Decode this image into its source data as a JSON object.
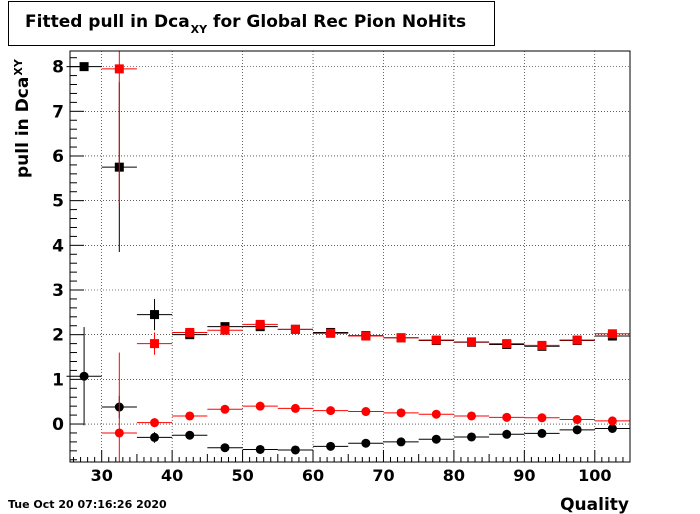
{
  "title": {
    "main": "Fitted pull in Dca",
    "sub": "XY",
    "rest": " for Global Rec Pion NoHits"
  },
  "timestamp": "Tue Oct 20 07:16:26 2020",
  "chart_data": {
    "type": "scatter",
    "xlabel": "Quality",
    "ylabel_main": "pull in Dca",
    "ylabel_sub": "XY",
    "xlim": [
      25.5,
      105
    ],
    "ylim": [
      -0.85,
      8.35
    ],
    "xticks": [
      30,
      40,
      50,
      60,
      70,
      80,
      90,
      100
    ],
    "yticks": [
      0,
      1,
      2,
      3,
      4,
      5,
      6,
      7,
      8
    ],
    "grid": true,
    "colors": {
      "black": "#000000",
      "red": "#ff0000"
    },
    "series": [
      {
        "marker": "square",
        "color": "#000000",
        "x": [
          27.5,
          32.5,
          37.5,
          42.5,
          47.5,
          52.5,
          57.5,
          62.5,
          67.5,
          72.5,
          77.5,
          82.5,
          87.5,
          92.5,
          97.5,
          102.5
        ],
        "y": [
          8.0,
          5.75,
          2.45,
          2.0,
          2.18,
          2.18,
          2.12,
          2.05,
          1.98,
          1.93,
          1.87,
          1.83,
          1.78,
          1.74,
          1.87,
          1.97
        ],
        "yerr": [
          0.05,
          1.9,
          0.35,
          0.05,
          0.04,
          0.04,
          0.03,
          0.03,
          0.03,
          0.03,
          0.03,
          0.03,
          0.03,
          0.03,
          0.04,
          0.04
        ]
      },
      {
        "marker": "square",
        "color": "#ff0000",
        "x": [
          32.5,
          37.5,
          42.5,
          47.5,
          52.5,
          57.5,
          62.5,
          67.5,
          72.5,
          77.5,
          82.5,
          87.5,
          92.5,
          97.5,
          102.5
        ],
        "y": [
          7.95,
          1.8,
          2.05,
          2.1,
          2.23,
          2.12,
          2.03,
          1.97,
          1.93,
          1.88,
          1.84,
          1.8,
          1.76,
          1.88,
          2.02
        ],
        "yerr": [
          3.0,
          0.25,
          0.08,
          0.04,
          0.04,
          0.03,
          0.03,
          0.03,
          0.03,
          0.03,
          0.03,
          0.03,
          0.03,
          0.04,
          0.04
        ]
      },
      {
        "marker": "circle",
        "color": "#000000",
        "x": [
          27.5,
          32.5,
          37.5,
          42.5,
          47.5,
          52.5,
          57.5,
          62.5,
          67.5,
          72.5,
          77.5,
          82.5,
          87.5,
          92.5,
          97.5,
          102.5
        ],
        "y": [
          1.07,
          0.38,
          -0.3,
          -0.25,
          -0.53,
          -0.57,
          -0.58,
          -0.5,
          -0.43,
          -0.4,
          -0.34,
          -0.29,
          -0.23,
          -0.21,
          -0.13,
          -0.1
        ],
        "yerr": [
          1.1,
          0.25,
          0.12,
          0.06,
          0.03,
          0.03,
          0.03,
          0.02,
          0.02,
          0.02,
          0.02,
          0.02,
          0.02,
          0.02,
          0.02,
          0.02
        ]
      },
      {
        "marker": "circle",
        "color": "#ff0000",
        "x": [
          32.5,
          37.5,
          42.5,
          47.5,
          52.5,
          57.5,
          62.5,
          67.5,
          72.5,
          77.5,
          82.5,
          87.5,
          92.5,
          97.5,
          102.5
        ],
        "y": [
          -0.2,
          0.03,
          0.18,
          0.33,
          0.4,
          0.35,
          0.3,
          0.28,
          0.25,
          0.22,
          0.18,
          0.15,
          0.14,
          0.1,
          0.07
        ],
        "yerr": [
          1.8,
          0.1,
          0.05,
          0.03,
          0.03,
          0.03,
          0.02,
          0.02,
          0.02,
          0.02,
          0.02,
          0.02,
          0.02,
          0.02,
          0.02
        ]
      }
    ]
  }
}
